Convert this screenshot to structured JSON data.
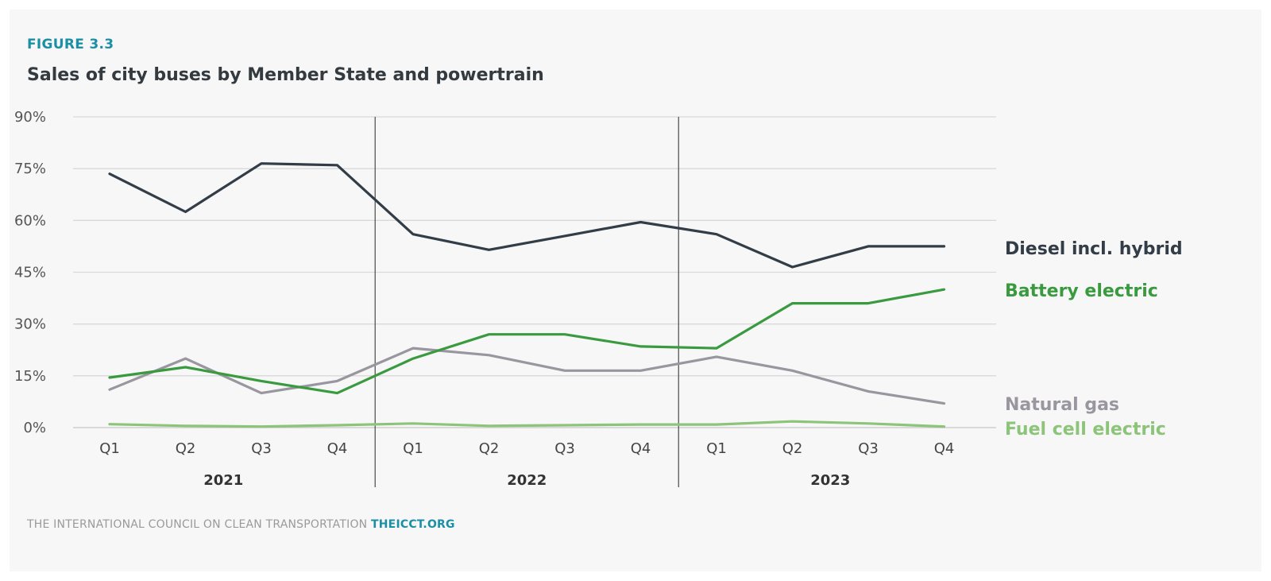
{
  "figure": {
    "label": "FIGURE 3.3",
    "title": "Sales of city buses by Member State and powertrain"
  },
  "footer": {
    "text": "THE INTERNATIONAL COUNCIL ON CLEAN TRANSPORTATION",
    "org": "THEICCT.ORG"
  },
  "colors": {
    "diesel": "#333d47",
    "battery": "#3a9a40",
    "natural_gas": "#9a96a0",
    "fuel_cell": "#8cc47a",
    "accent": "#1b8fa6"
  },
  "chart_data": {
    "type": "line",
    "title": "Sales of city buses by Member State and powertrain",
    "xlabel": "",
    "ylabel": "",
    "ylim": [
      0,
      90
    ],
    "yticks": [
      0,
      15,
      30,
      45,
      60,
      75,
      90
    ],
    "ytick_labels": [
      "0%",
      "15%",
      "30%",
      "45%",
      "60%",
      "75%",
      "90%"
    ],
    "categories": [
      "Q1",
      "Q2",
      "Q3",
      "Q4",
      "Q1",
      "Q2",
      "Q3",
      "Q4",
      "Q1",
      "Q2",
      "Q3",
      "Q4"
    ],
    "groups": [
      {
        "label": "2021",
        "count": 4
      },
      {
        "label": "2022",
        "count": 4
      },
      {
        "label": "2023",
        "count": 4
      }
    ],
    "grid": true,
    "legend": "right, labels at line ends",
    "series": [
      {
        "name": "Diesel incl. hybrid",
        "color_key": "diesel",
        "values": [
          73.5,
          62.5,
          76.5,
          76,
          56,
          51.5,
          55.5,
          59.5,
          56,
          46.5,
          52.5,
          52.5
        ]
      },
      {
        "name": "Battery electric",
        "color_key": "battery",
        "values": [
          14.5,
          17.5,
          13.5,
          10,
          20,
          27,
          27,
          23.5,
          23,
          36,
          36,
          40
        ]
      },
      {
        "name": "Natural gas",
        "color_key": "natural_gas",
        "values": [
          11,
          20,
          10,
          13.5,
          23,
          21,
          16.5,
          16.5,
          20.5,
          16.5,
          10.5,
          7
        ]
      },
      {
        "name": "Fuel cell electric",
        "color_key": "fuel_cell",
        "values": [
          1,
          0.5,
          0.3,
          0.7,
          1.2,
          0.5,
          0.7,
          0.9,
          0.9,
          1.8,
          1.2,
          0.3
        ]
      }
    ]
  }
}
